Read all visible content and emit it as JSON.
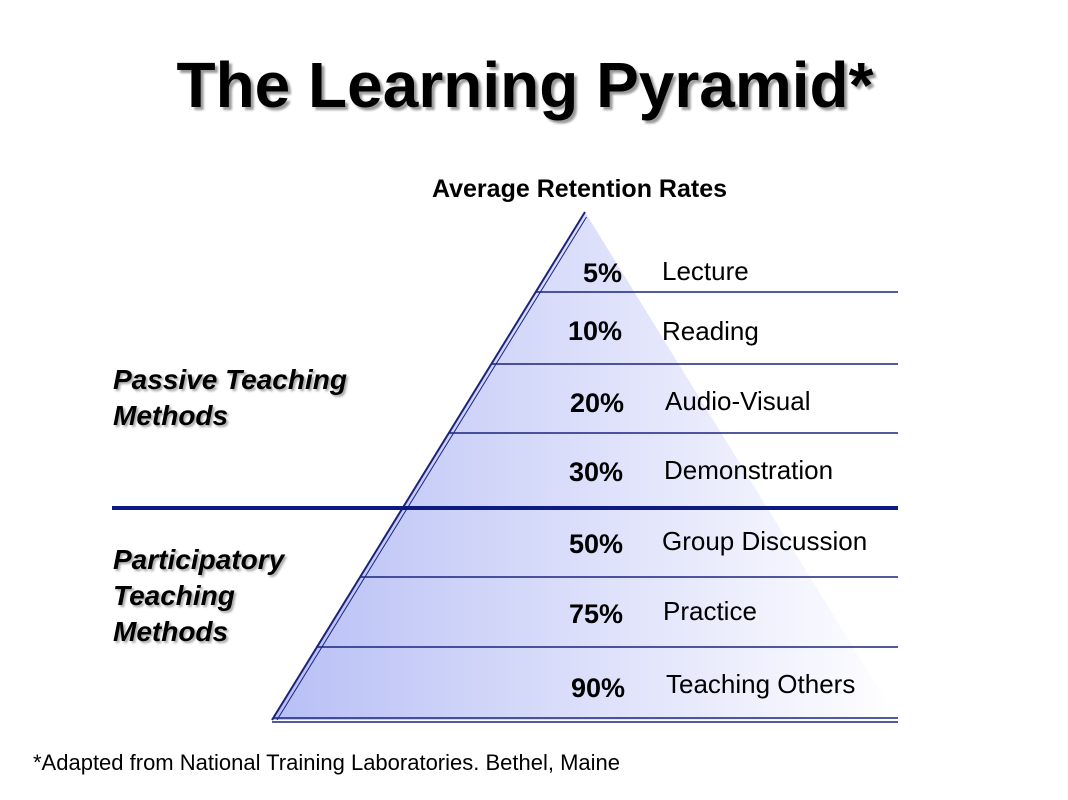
{
  "title": "The Learning Pyramid*",
  "subtitle": "Average Retention Rates",
  "groups": {
    "passive": {
      "lines": [
        "Passive Teaching",
        "Methods"
      ]
    },
    "participatory": {
      "lines": [
        "Participatory",
        "Teaching",
        "Methods"
      ]
    }
  },
  "levels": [
    {
      "percent": "5%",
      "value": 5,
      "method": "Lecture",
      "group": "passive"
    },
    {
      "percent": "10%",
      "value": 10,
      "method": "Reading",
      "group": "passive"
    },
    {
      "percent": "20%",
      "value": 20,
      "method": "Audio-Visual",
      "group": "passive"
    },
    {
      "percent": "30%",
      "value": 30,
      "method": "Demonstration",
      "group": "passive"
    },
    {
      "percent": "50%",
      "value": 50,
      "method": "Group Discussion",
      "group": "participatory"
    },
    {
      "percent": "75%",
      "value": 75,
      "method": "Practice",
      "group": "participatory"
    },
    {
      "percent": "90%",
      "value": 90,
      "method": "Teaching Others",
      "group": "participatory"
    }
  ],
  "footnote": "*Adapted from National Training Laboratories. Bethel, Maine",
  "colors": {
    "pyramid_dark": "#b8bff5",
    "pyramid_light": "#ffffff",
    "lines": "#1a237e",
    "divider": "#0d1a80"
  }
}
